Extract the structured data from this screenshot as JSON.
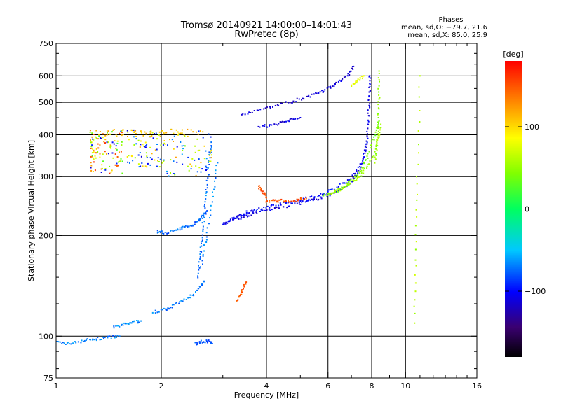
{
  "title": "Tromsø 20140921 14:00:00–14:01:43",
  "subtitle": "RwPretec (8p)",
  "phases": {
    "heading": "Phases",
    "o_line": "mean, sd,O: −79.7, 21.6",
    "x_line": "mean, sd,X:  85.0, 25.9"
  },
  "colorbar": {
    "label": "[deg]",
    "range": [
      -180,
      180
    ],
    "ticks": [
      {
        "value": 100,
        "label": "100"
      },
      {
        "value": 0,
        "label": "0"
      },
      {
        "value": -100,
        "label": "−100"
      }
    ]
  },
  "chart_data": {
    "type": "scatter",
    "xlabel": "Frequency [MHz]",
    "ylabel": "Stationary phase Virtual Height [km]",
    "xscale": "log",
    "yscale": "log",
    "xlim": [
      1,
      16
    ],
    "ylim": [
      75,
      750
    ],
    "xticks": [
      {
        "value": 1,
        "label": "1"
      },
      {
        "value": 2,
        "label": "2"
      },
      {
        "value": 4,
        "label": "4"
      },
      {
        "value": 6,
        "label": "6"
      },
      {
        "value": 8,
        "label": "8"
      },
      {
        "value": 10,
        "label": "10"
      },
      {
        "value": 16,
        "label": "16"
      }
    ],
    "yticks": [
      {
        "value": 75,
        "label": "75"
      },
      {
        "value": 100,
        "label": "100"
      },
      {
        "value": 200,
        "label": "200"
      },
      {
        "value": 300,
        "label": "300"
      },
      {
        "value": 400,
        "label": "400"
      },
      {
        "value": 500,
        "label": "500"
      },
      {
        "value": 600,
        "label": "600"
      },
      {
        "value": 750,
        "label": "750"
      }
    ],
    "grid_x": [
      2,
      4,
      6,
      8,
      10
    ],
    "grid_y": [
      100,
      200,
      300,
      400,
      500,
      600
    ],
    "grid": true,
    "traces": [
      {
        "f": [
          1.0,
          1.08,
          1.2,
          1.3,
          1.4,
          1.52
        ],
        "h": [
          96,
          95,
          97,
          98,
          99,
          100
        ],
        "phase": -70
      },
      {
        "f": [
          1.46,
          1.55,
          1.65,
          1.75
        ],
        "h": [
          106,
          108,
          110,
          111
        ],
        "phase": -65
      },
      {
        "f": [
          1.95,
          2.05,
          2.2,
          2.35,
          2.5,
          2.6,
          2.7
        ],
        "h": [
          205,
          204,
          207,
          212,
          218,
          226,
          236
        ],
        "phase": -75
      },
      {
        "f": [
          1.9,
          2.05,
          2.2,
          2.4,
          2.55,
          2.65
        ],
        "h": [
          118,
          120,
          124,
          130,
          138,
          146
        ],
        "phase": -70
      },
      {
        "f": [
          2.55,
          2.58,
          2.62,
          2.66,
          2.7,
          2.74,
          2.78
        ],
        "h": [
          150,
          175,
          200,
          240,
          280,
          330,
          380
        ],
        "phase": -72
      },
      {
        "f": [
          2.6,
          2.7,
          2.8,
          2.9
        ],
        "h": [
          160,
          200,
          260,
          330
        ],
        "phase": -68
      },
      {
        "f": [
          2.5,
          2.6,
          2.7,
          2.8
        ],
        "h": [
          95,
          96,
          97,
          95
        ],
        "phase": -80
      },
      {
        "f": [
          3.0,
          3.1,
          3.2,
          3.3,
          3.45
        ],
        "h": [
          215,
          220,
          225,
          228,
          230
        ],
        "phase": -105
      },
      {
        "f": [
          3.35,
          3.6,
          4.0,
          4.5,
          5.0,
          5.5,
          6.0,
          6.5,
          7.0,
          7.4,
          7.7
        ],
        "h": [
          225,
          232,
          238,
          244,
          250,
          256,
          264,
          274,
          290,
          315,
          360
        ],
        "phase": -110
      },
      {
        "f": [
          3.5,
          3.8,
          4.2,
          4.7,
          5.2,
          5.8,
          6.4,
          7.0,
          7.5,
          7.8
        ],
        "h": [
          235,
          240,
          246,
          252,
          258,
          266,
          278,
          298,
          330,
          390
        ],
        "phase": -100
      },
      {
        "f": [
          4.0,
          4.3,
          4.6,
          4.9,
          5.2
        ],
        "h": [
          253,
          254,
          254,
          255,
          258
        ],
        "phase": 150
      },
      {
        "f": [
          3.8,
          3.9,
          4.0
        ],
        "h": [
          280,
          270,
          260
        ],
        "phase": 150
      },
      {
        "f": [
          5.8,
          6.2,
          6.6,
          7.0,
          7.4,
          7.8,
          8.1,
          8.4
        ],
        "h": [
          262,
          268,
          278,
          292,
          312,
          345,
          390,
          440
        ],
        "phase": 40
      },
      {
        "f": [
          6.0,
          6.5,
          7.0,
          7.5,
          8.0,
          8.3,
          8.5
        ],
        "h": [
          266,
          274,
          286,
          305,
          335,
          380,
          430
        ],
        "phase": 55
      },
      {
        "f": [
          7.7,
          7.8,
          7.85,
          7.9,
          7.9
        ],
        "h": [
          360,
          420,
          480,
          540,
          600
        ],
        "phase": -110
      },
      {
        "f": [
          8.2,
          8.3,
          8.35,
          8.4,
          8.4
        ],
        "h": [
          330,
          380,
          440,
          520,
          620
        ],
        "phase": 50
      },
      {
        "f": [
          3.4,
          3.8,
          4.3,
          4.8,
          5.3,
          5.8,
          6.3,
          6.8,
          7.1
        ],
        "h": [
          460,
          475,
          490,
          505,
          520,
          540,
          565,
          600,
          640
        ],
        "phase": -115
      },
      {
        "f": [
          3.8,
          4.2,
          4.6,
          5.0
        ],
        "h": [
          420,
          430,
          440,
          450
        ],
        "phase": -110
      },
      {
        "f": [
          7.0,
          7.3,
          7.6
        ],
        "h": [
          560,
          580,
          600
        ],
        "phase": 80
      },
      {
        "f": [
          3.3,
          3.4,
          3.5
        ],
        "h": [
          128,
          135,
          145
        ],
        "phase": 150
      },
      {
        "f": [
          10.6,
          10.7,
          10.8,
          11.0
        ],
        "h": [
          110,
          180,
          300,
          600
        ],
        "phase": 60
      }
    ],
    "clusters": [
      {
        "f": [
          1.25,
          1.55
        ],
        "h": [
          305,
          415
        ],
        "phases": [
          100,
          130,
          60,
          -100,
          30,
          150
        ],
        "n": 110
      },
      {
        "f": [
          1.6,
          2.0
        ],
        "h": [
          320,
          415
        ],
        "phases": [
          -100,
          100,
          60,
          -80
        ],
        "n": 70
      },
      {
        "f": [
          2.0,
          2.8
        ],
        "h": [
          300,
          415
        ],
        "phases": [
          -90,
          110,
          60,
          -70
        ],
        "n": 80
      },
      {
        "f": [
          1.3,
          2.7
        ],
        "h": [
          395,
          415
        ],
        "phases": [
          110
        ],
        "n": 50
      }
    ]
  }
}
